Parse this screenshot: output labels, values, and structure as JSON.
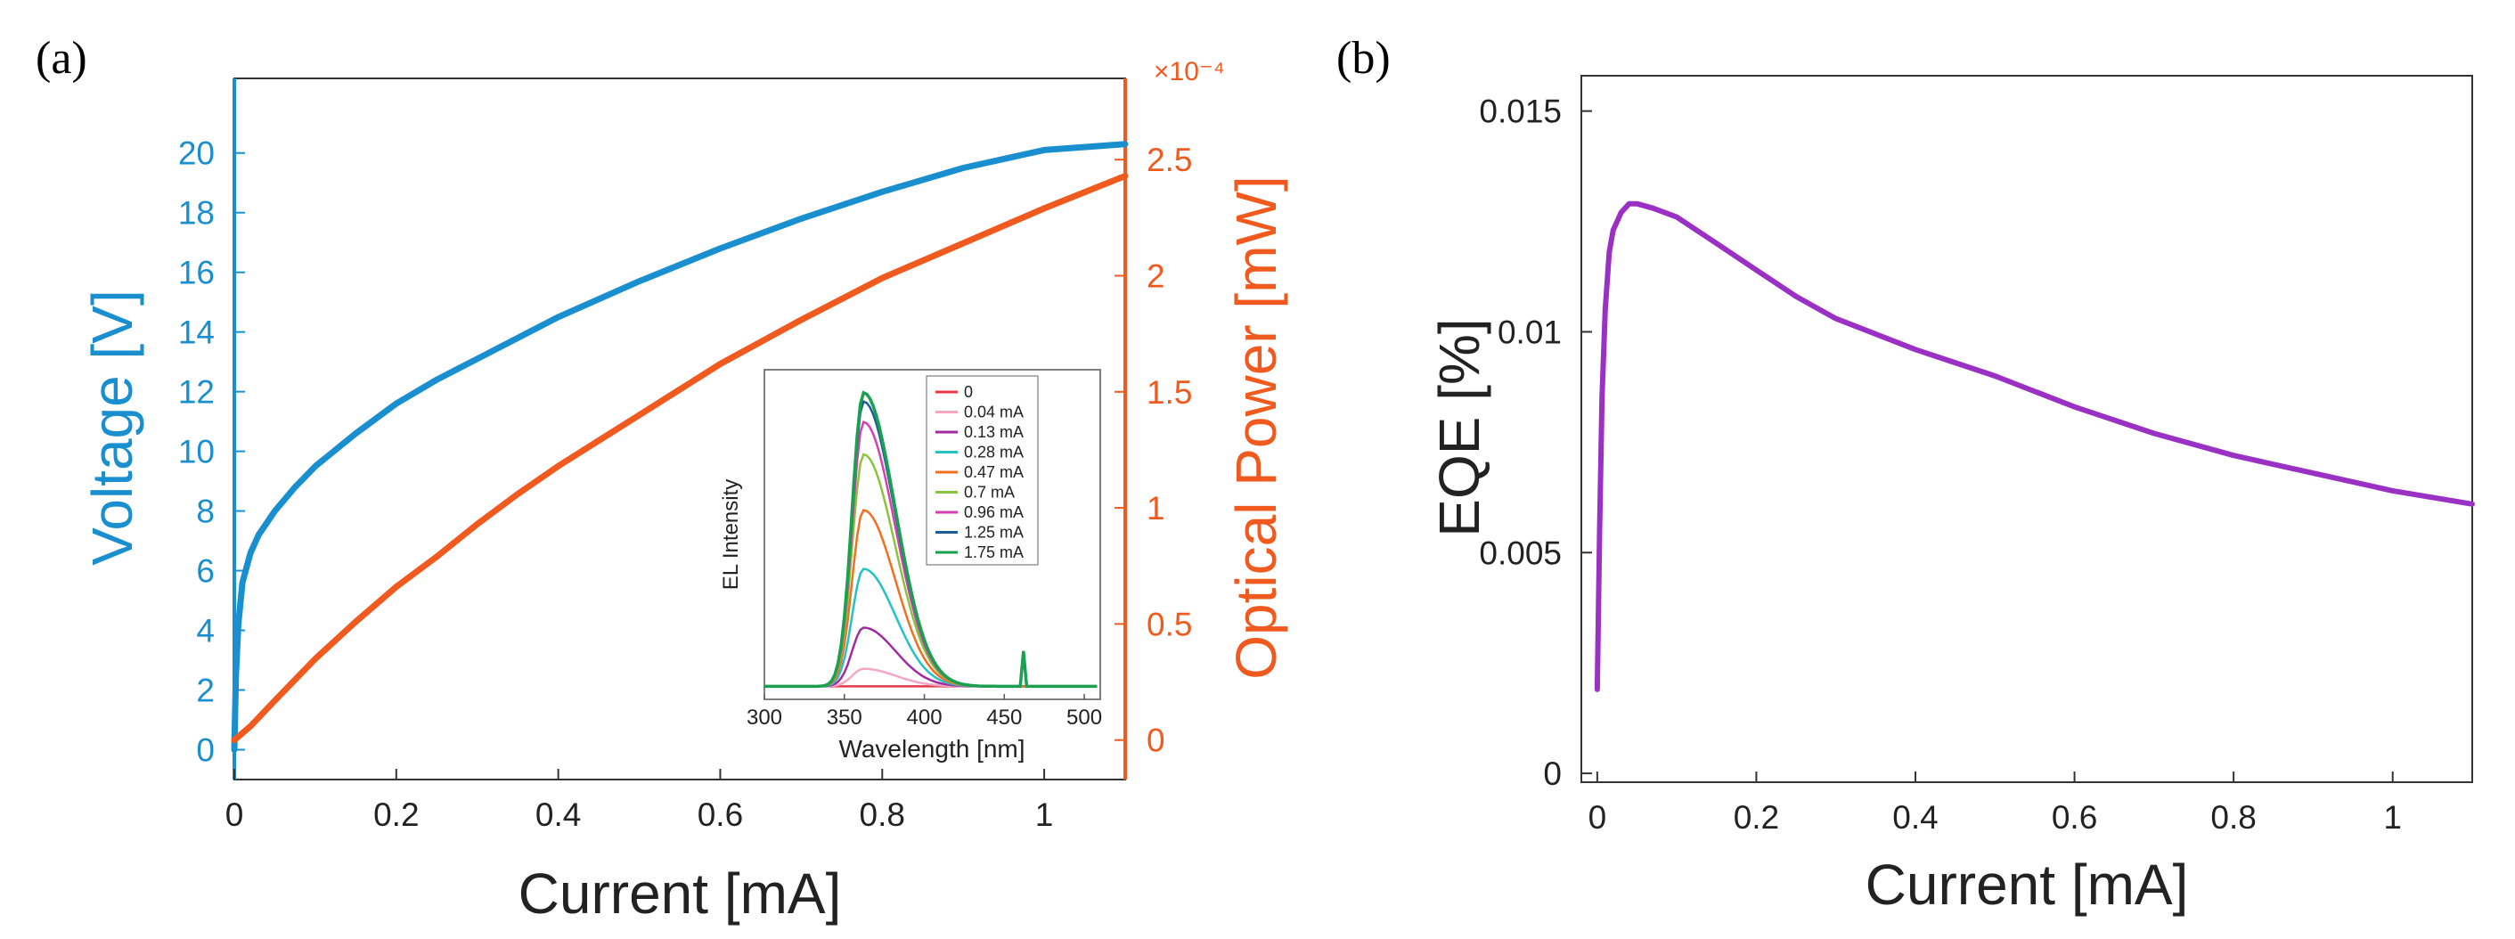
{
  "chart_data": [
    {
      "panel_label": "(a)",
      "type": "line",
      "title": "",
      "xlabel": "Current [mA]",
      "ylabel_left": "Voltage [V]",
      "ylabel_right": "Optical Power [mW]",
      "right_exponent": "×10⁻⁴",
      "x_ticks": [
        "0",
        "0.2",
        "0.4",
        "0.6",
        "0.8",
        "1"
      ],
      "y_left_ticks": [
        "0",
        "2",
        "4",
        "6",
        "8",
        "10",
        "12",
        "14",
        "16",
        "18",
        "20"
      ],
      "y_right_ticks": [
        "0",
        "0.5",
        "1",
        "1.5",
        "2",
        "2.5"
      ],
      "xlim": [
        0,
        1.1
      ],
      "ylim_left": [
        -1,
        22.5
      ],
      "ylim_right": [
        -0.17,
        2.85
      ],
      "series": [
        {
          "name": "Voltage",
          "axis": "left",
          "color": "#1a8fd0",
          "x": [
            0,
            0.002,
            0.005,
            0.01,
            0.02,
            0.03,
            0.05,
            0.075,
            0.1,
            0.15,
            0.2,
            0.25,
            0.3,
            0.4,
            0.5,
            0.6,
            0.7,
            0.8,
            0.9,
            1.0,
            1.1
          ],
          "y": [
            0,
            2.5,
            4.2,
            5.6,
            6.6,
            7.2,
            8.0,
            8.8,
            9.5,
            10.6,
            11.6,
            12.4,
            13.1,
            14.5,
            15.7,
            16.8,
            17.8,
            18.7,
            19.5,
            20.1,
            20.3
          ]
        },
        {
          "name": "Optical Power",
          "axis": "right",
          "color": "#f05a1e",
          "x": [
            0,
            0.02,
            0.05,
            0.1,
            0.15,
            0.2,
            0.25,
            0.3,
            0.35,
            0.4,
            0.45,
            0.5,
            0.6,
            0.7,
            0.8,
            0.9,
            1.0,
            1.1
          ],
          "y": [
            0,
            0.06,
            0.17,
            0.35,
            0.51,
            0.66,
            0.79,
            0.93,
            1.06,
            1.18,
            1.29,
            1.4,
            1.62,
            1.81,
            1.99,
            2.14,
            2.29,
            2.43
          ]
        }
      ],
      "inset": {
        "type": "line",
        "xlabel": "Wavelength [nm]",
        "ylabel": "EL Intensity",
        "x_ticks": [
          "300",
          "350",
          "400",
          "450",
          "500"
        ],
        "xlim": [
          300,
          510
        ],
        "ylim": [
          0,
          1.08
        ],
        "peak_wavelength": 362,
        "spike_wavelength": 462,
        "legend_entries": [
          {
            "label": "0",
            "color": "#e63946",
            "peak": 0.0
          },
          {
            "label": "0.04 mA",
            "color": "#f4a7c4",
            "peak": 0.06
          },
          {
            "label": "0.13 mA",
            "color": "#a02ba0",
            "peak": 0.2
          },
          {
            "label": "0.28 mA",
            "color": "#26c0c8",
            "peak": 0.4
          },
          {
            "label": "0.47 mA",
            "color": "#f07020",
            "peak": 0.6
          },
          {
            "label": "0.7 mA",
            "color": "#8ac43c",
            "peak": 0.79
          },
          {
            "label": "0.96 mA",
            "color": "#d63fb0",
            "peak": 0.9
          },
          {
            "label": "1.25 mA",
            "color": "#1a5c9a",
            "peak": 0.97
          },
          {
            "label": "1.75 mA",
            "color": "#1aa050",
            "peak": 1.0
          }
        ]
      }
    },
    {
      "panel_label": "(b)",
      "type": "line",
      "title": "",
      "xlabel": "Current [mA]",
      "ylabel": "EQE [%]",
      "x_ticks": [
        "0",
        "0.2",
        "0.4",
        "0.6",
        "0.8",
        "1"
      ],
      "y_ticks": [
        "0",
        "0.005",
        "0.01",
        "0.015"
      ],
      "xlim": [
        -0.02,
        1.1
      ],
      "ylim": [
        -0.0002,
        0.0158
      ],
      "series": [
        {
          "name": "EQE",
          "color": "#9b30c4",
          "x": [
            0,
            0.003,
            0.006,
            0.01,
            0.015,
            0.02,
            0.03,
            0.04,
            0.05,
            0.07,
            0.1,
            0.15,
            0.2,
            0.25,
            0.3,
            0.4,
            0.5,
            0.6,
            0.7,
            0.8,
            0.9,
            1.0,
            1.1
          ],
          "y": [
            0.0019,
            0.0055,
            0.0085,
            0.0105,
            0.0118,
            0.0123,
            0.0127,
            0.0129,
            0.0129,
            0.0128,
            0.0126,
            0.012,
            0.0114,
            0.0108,
            0.0103,
            0.0096,
            0.009,
            0.0083,
            0.0077,
            0.0072,
            0.0068,
            0.0064,
            0.0061
          ]
        }
      ]
    }
  ]
}
